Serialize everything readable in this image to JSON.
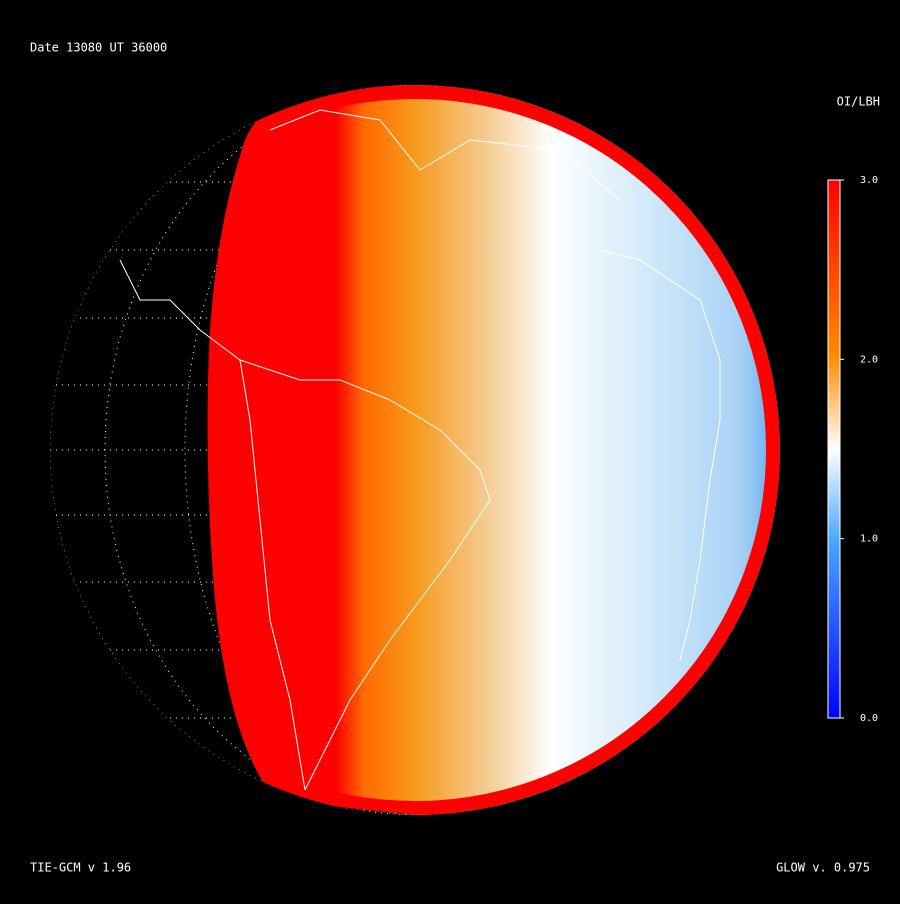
{
  "header": {
    "date_line": "Date 13080  UT 36000",
    "left_footer": "TIE-GCM v 1.96",
    "right_footer": "GLOW v. 0.975"
  },
  "colorbar": {
    "label": "OI/LBH",
    "lim": [
      0,
      3
    ],
    "ticks": [
      {
        "value": 0,
        "label": "0.0"
      },
      {
        "value": 1,
        "label": "1.0"
      },
      {
        "value": 2,
        "label": "2.0"
      },
      {
        "value": 3,
        "label": "3.0"
      }
    ]
  }
}
